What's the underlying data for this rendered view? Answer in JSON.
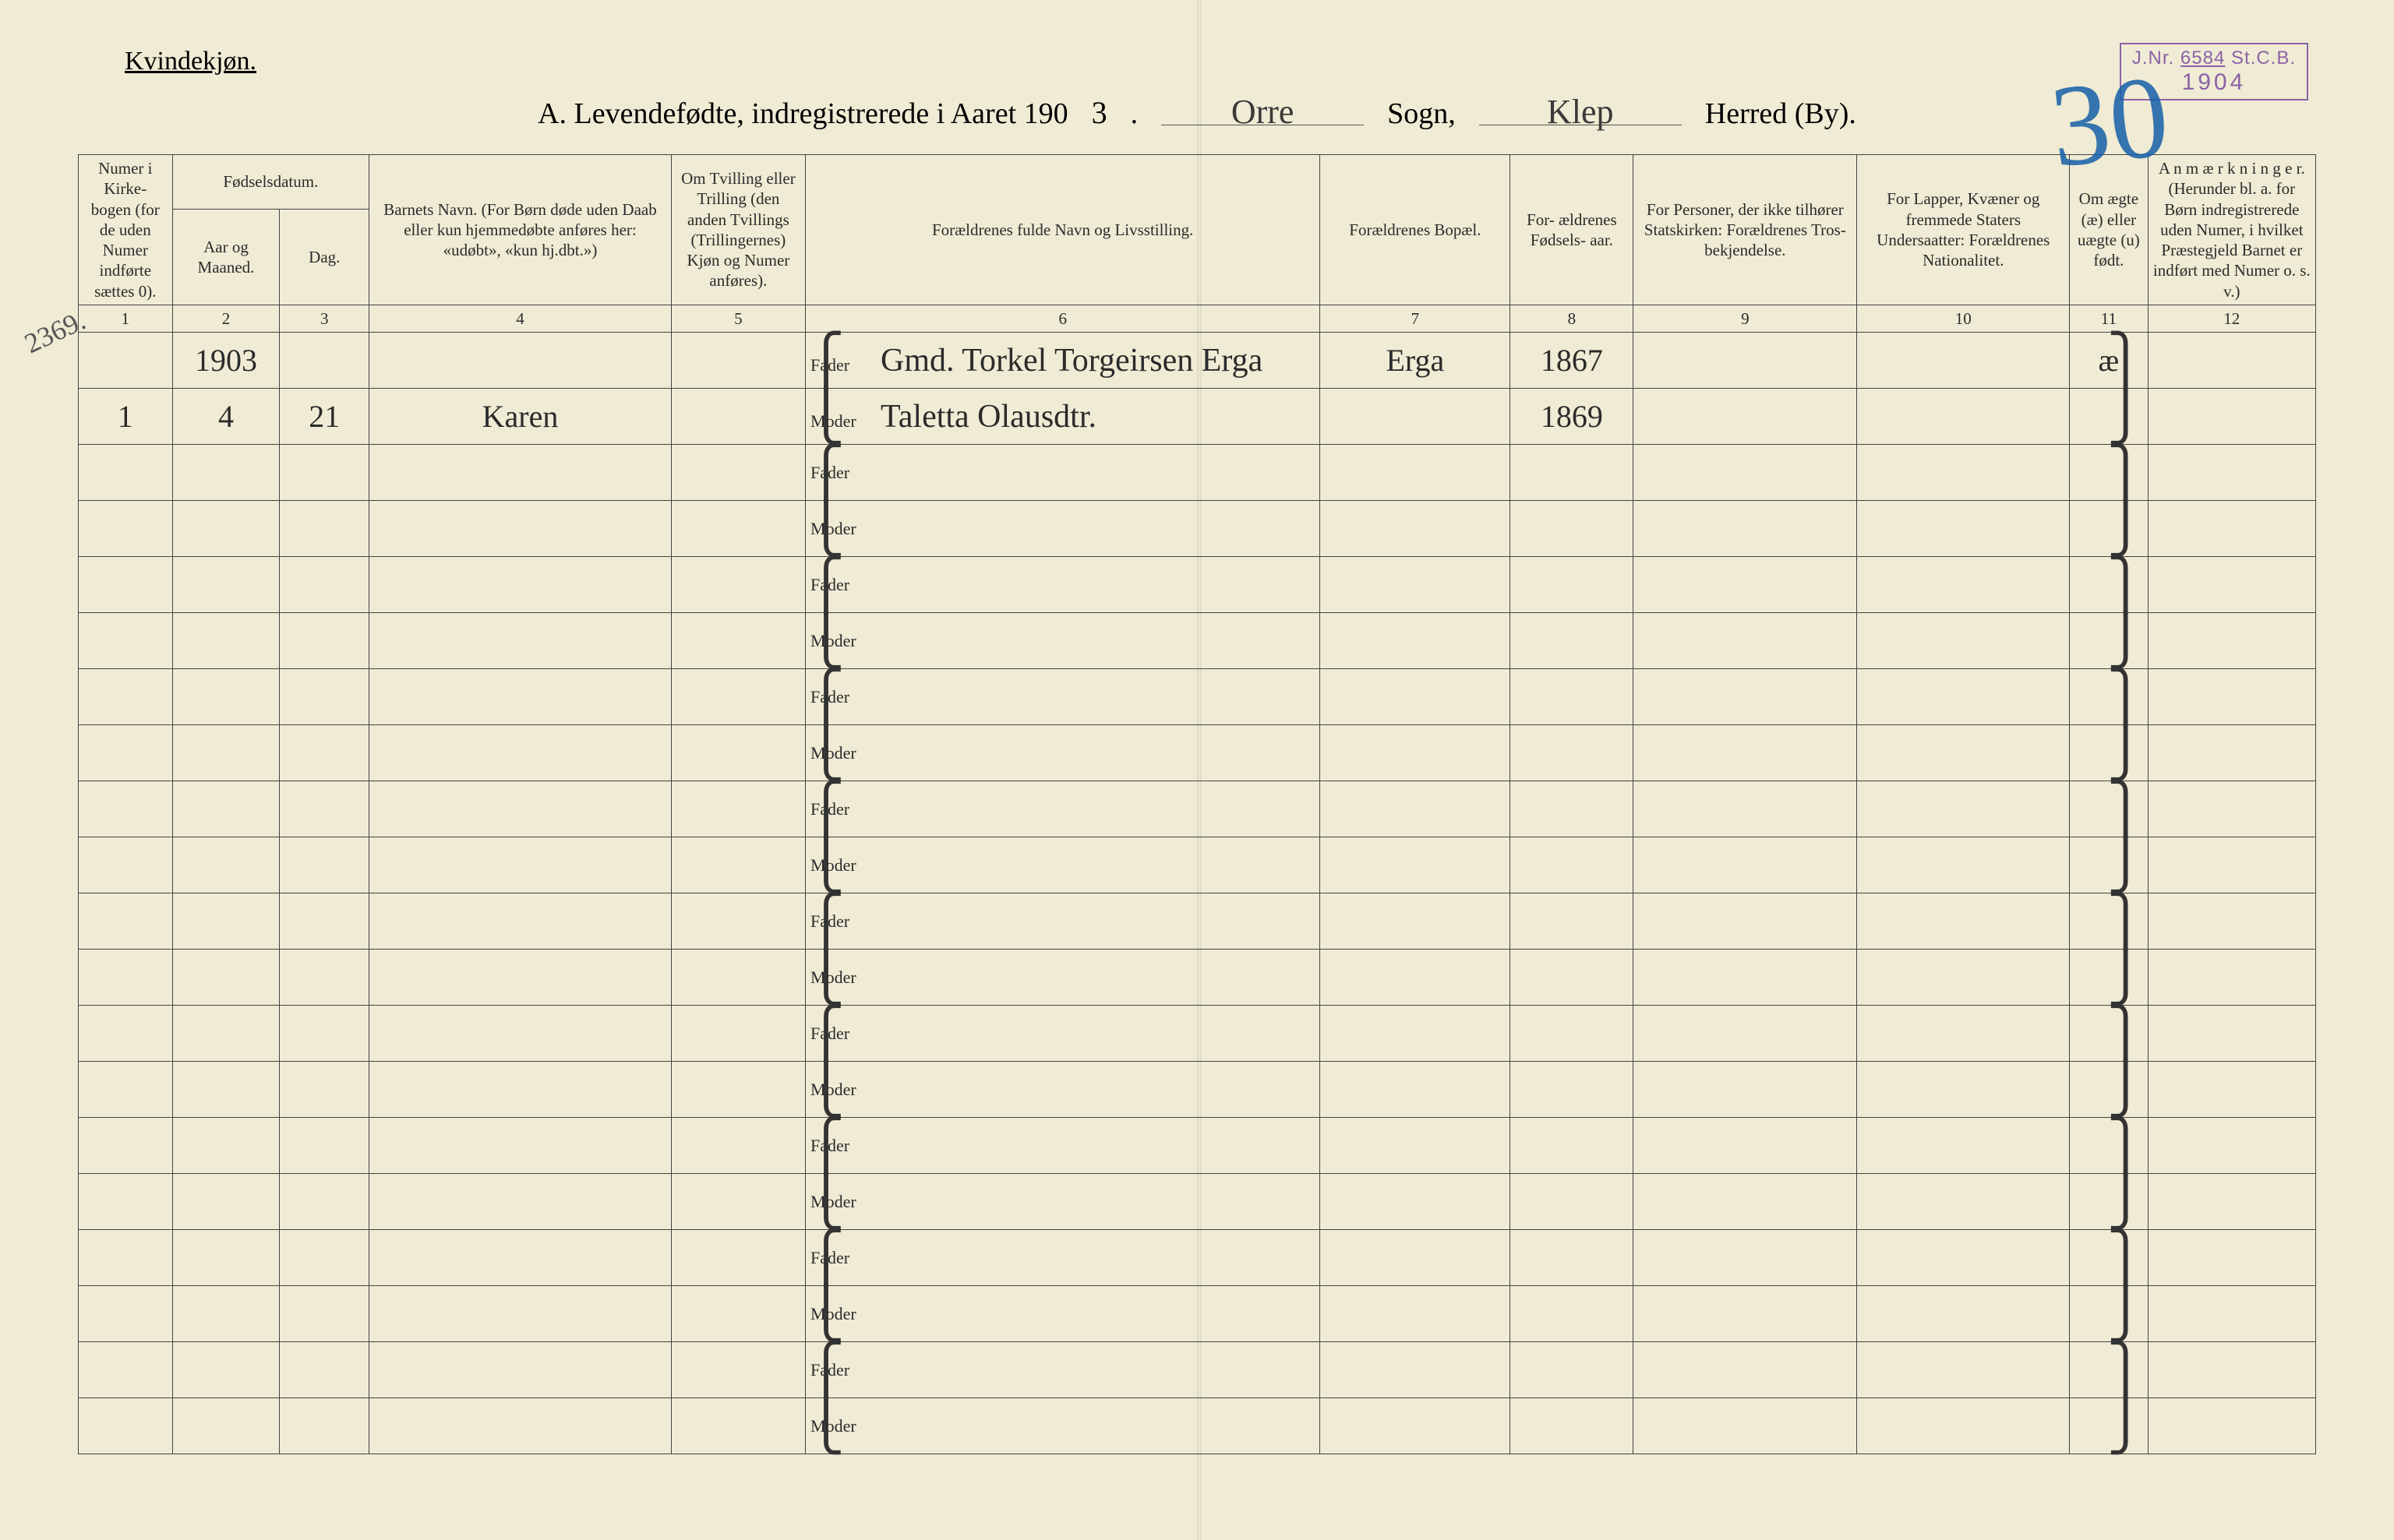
{
  "page": {
    "background_color": "#f0ebd4",
    "border_color": "#444444",
    "text_color": "#2b2b2b"
  },
  "stamp": {
    "jnr_label": "J.Nr.",
    "jnr_value": "6584",
    "suffix": "St.C.B.",
    "year": "1904",
    "color": "#7a4ba0"
  },
  "big_page_number": {
    "text": "30",
    "color": "#1560a8"
  },
  "margin_note": "2369.",
  "header": {
    "gender": "Kvindekjøn.",
    "title_prefix": "A.  Levendefødte, indregistrerede i Aaret 190",
    "year_suffix": "3",
    "sogn_label": "Sogn,",
    "sogn_value": "Orre",
    "herred_label": "Herred (By).",
    "herred_value": "Klep"
  },
  "columns": {
    "c1": "Numer i Kirke- bogen (for de uden Numer indførte sættes 0).",
    "c2_top": "Fødselsdatum.",
    "c2a": "Aar og Maaned.",
    "c2b": "Dag.",
    "c3": "Barnets Navn.\n(For Børn døde uden Daab eller kun hjemmedøbte anføres her: «udøbt», «kun hj.dbt.»)",
    "c4": "Om Tvilling eller Trilling (den anden Tvillings (Trillingernes) Kjøn og Numer anføres).",
    "c5": "Forældrenes fulde Navn og Livsstilling.",
    "c6": "Forældrenes Bopæl.",
    "c7": "For- ældrenes Fødsels- aar.",
    "c8": "For Personer, der ikke tilhører Statskirken: Forældrenes Tros- bekjendelse.",
    "c9": "For Lapper, Kvæner og fremmede Staters Undersaatter: Forældrenes Nationalitet.",
    "c10": "Om ægte (æ) eller uægte (u) født.",
    "c11": "A n m æ r k n i n g e r.\n(Herunder bl. a. for Børn indregistrerede uden Numer, i hvilket Præstegjeld Barnet er indført med Numer o. s. v.)"
  },
  "column_numbers": [
    "1",
    "2",
    "3",
    "4",
    "5",
    "6",
    "7",
    "8",
    "9",
    "10",
    "11",
    "12"
  ],
  "column_widths_pct": [
    4.2,
    4.8,
    4.0,
    13.5,
    6.0,
    23.0,
    8.5,
    5.5,
    10.0,
    9.5,
    3.5,
    7.5
  ],
  "parent_labels": {
    "father": "Fader",
    "mother": "Moder"
  },
  "rows": [
    {
      "num": "",
      "year_month": "1903",
      "day": "",
      "name": "",
      "twin": "",
      "father": "Gmd. Torkel Torgeirsen Erga",
      "mother": "Taletta Olausdtr.",
      "residence": "Erga",
      "father_year": "1867",
      "mother_year": "1869",
      "religion": "",
      "nationality": "",
      "legit": "æ",
      "remarks": ""
    },
    {
      "num": "1",
      "year_month": "4",
      "day": "21",
      "name": "Karen",
      "twin": "",
      "father": "",
      "mother": "",
      "residence": "",
      "father_year": "",
      "mother_year": "",
      "religion": "",
      "nationality": "",
      "legit": "",
      "remarks": ""
    }
  ],
  "blank_row_count": 9,
  "fonts": {
    "printed_family": "Georgia, Times New Roman, serif",
    "handwritten_family": "Brush Script MT, Segoe Script, cursive",
    "header_size_pt": 28,
    "body_size_pt": 16,
    "hand_size_pt": 30
  }
}
